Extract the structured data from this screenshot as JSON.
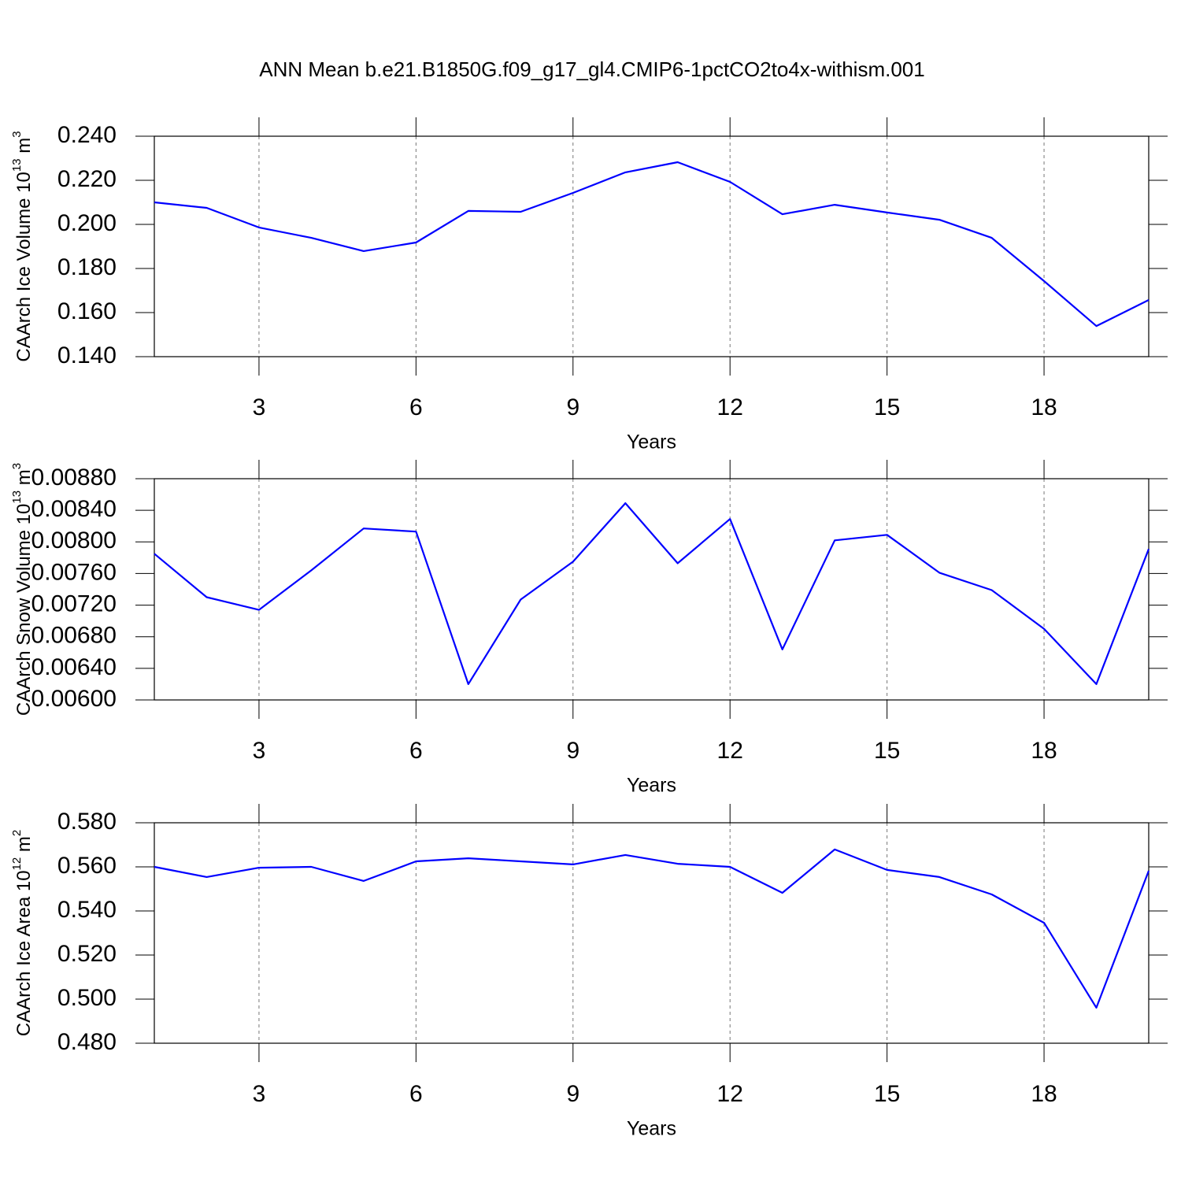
{
  "chart_data": [
    {
      "type": "line",
      "title": "ANN Mean b.e21.B1850G.f09_g17_gl4.CMIP6-1pctCO2to4x-withism.001",
      "ylabel": {
        "text": "CAArch Ice Volume 10",
        "exp": "13",
        "unit": " m",
        "unit_exp": "3"
      },
      "xlabel": "Years",
      "x": [
        1,
        2,
        3,
        4,
        5,
        6,
        7,
        8,
        9,
        10,
        11,
        12,
        13,
        14,
        15,
        16,
        17,
        18,
        19,
        20
      ],
      "series": [
        {
          "color": "#0000ff",
          "values": [
            0.21,
            0.2075,
            0.1986,
            0.1939,
            0.1879,
            0.1918,
            0.2061,
            0.2057,
            0.2143,
            0.2236,
            0.2282,
            0.2193,
            0.2046,
            0.2089,
            0.2054,
            0.2021,
            0.1939,
            0.1743,
            0.1539,
            0.1657
          ]
        }
      ],
      "xlim": [
        1,
        20
      ],
      "xticks": [
        3,
        6,
        9,
        12,
        15,
        18
      ],
      "ylim": [
        0.14,
        0.24
      ],
      "yticks": [
        {
          "value": 0.14,
          "label": "0.140"
        },
        {
          "value": 0.16,
          "label": "0.160"
        },
        {
          "value": 0.18,
          "label": "0.180"
        },
        {
          "value": 0.2,
          "label": "0.200"
        },
        {
          "value": 0.22,
          "label": "0.220"
        },
        {
          "value": 0.24,
          "label": "0.240"
        }
      ],
      "grid": "x-dashed"
    },
    {
      "type": "line",
      "ylabel": {
        "text": "CAArch Snow Volume 10",
        "exp": "13",
        "unit": " m",
        "unit_exp": "3"
      },
      "xlabel": "Years",
      "x": [
        1,
        2,
        3,
        4,
        5,
        6,
        7,
        8,
        9,
        10,
        11,
        12,
        13,
        14,
        15,
        16,
        17,
        18,
        19,
        20
      ],
      "series": [
        {
          "color": "#0000ff",
          "values": [
            0.00785,
            0.0073,
            0.00714,
            0.00764,
            0.00817,
            0.00813,
            0.0062,
            0.00727,
            0.00775,
            0.00849,
            0.00773,
            0.00829,
            0.00664,
            0.00802,
            0.00809,
            0.00761,
            0.00739,
            0.0069,
            0.0062,
            0.00791
          ]
        }
      ],
      "xlim": [
        1,
        20
      ],
      "xticks": [
        3,
        6,
        9,
        12,
        15,
        18
      ],
      "ylim": [
        0.006,
        0.0088
      ],
      "yticks": [
        {
          "value": 0.006,
          "label": "0.00600"
        },
        {
          "value": 0.0064,
          "label": "0.00640"
        },
        {
          "value": 0.0068,
          "label": "0.00680"
        },
        {
          "value": 0.0072,
          "label": "0.00720"
        },
        {
          "value": 0.0076,
          "label": "0.00760"
        },
        {
          "value": 0.008,
          "label": "0.00800"
        },
        {
          "value": 0.0084,
          "label": "0.00840"
        },
        {
          "value": 0.0088,
          "label": "0.00880"
        }
      ],
      "grid": "x-dashed"
    },
    {
      "type": "line",
      "ylabel": {
        "text": "CAArch Ice Area 10",
        "exp": "12",
        "unit": " m",
        "unit_exp": "2"
      },
      "xlabel": "Years",
      "x": [
        1,
        2,
        3,
        4,
        5,
        6,
        7,
        8,
        9,
        10,
        11,
        12,
        13,
        14,
        15,
        16,
        17,
        18,
        19,
        20
      ],
      "series": [
        {
          "color": "#0000ff",
          "values": [
            0.56,
            0.5554,
            0.5596,
            0.56,
            0.5536,
            0.5625,
            0.5639,
            0.5625,
            0.5611,
            0.5654,
            0.5614,
            0.56,
            0.5482,
            0.5679,
            0.5586,
            0.5554,
            0.5475,
            0.5346,
            0.4961,
            0.5582
          ]
        }
      ],
      "xlim": [
        1,
        20
      ],
      "xticks": [
        3,
        6,
        9,
        12,
        15,
        18
      ],
      "ylim": [
        0.48,
        0.58
      ],
      "yticks": [
        {
          "value": 0.48,
          "label": "0.480"
        },
        {
          "value": 0.5,
          "label": "0.500"
        },
        {
          "value": 0.52,
          "label": "0.520"
        },
        {
          "value": 0.54,
          "label": "0.540"
        },
        {
          "value": 0.56,
          "label": "0.560"
        },
        {
          "value": 0.58,
          "label": "0.580"
        }
      ],
      "grid": "x-dashed"
    }
  ]
}
